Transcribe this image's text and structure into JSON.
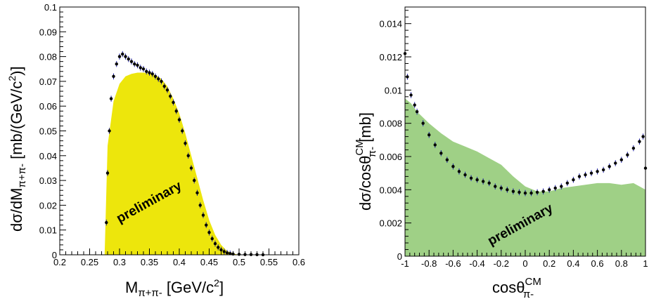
{
  "chart_data": [
    {
      "type": "scatter",
      "annotation": "preliminary",
      "xlabel": {
        "main": "M",
        "sub": "π+π-",
        "unit": "[GeV/c",
        "sup": "2",
        "close": "]"
      },
      "ylabel": {
        "main": "dσ/dM",
        "sub": "π+π-",
        "unit": "[mb/(GeV/c",
        "sup": "2",
        "close": ")]"
      },
      "xlim": [
        0.2,
        0.6
      ],
      "ylim": [
        0,
        0.1
      ],
      "x_ticks": [
        "0.2",
        "0.25",
        "0.3",
        "0.35",
        "0.4",
        "0.45",
        "0.5",
        "0.55",
        "0.6"
      ],
      "y_ticks": [
        "0",
        "0.01",
        "0.02",
        "0.03",
        "0.04",
        "0.05",
        "0.06",
        "0.07",
        "0.08",
        "0.09",
        "0.1"
      ],
      "series": [
        {
          "kind": "filled-area",
          "color": "#ede60c",
          "x": [
            0.275,
            0.28,
            0.29,
            0.3,
            0.31,
            0.32,
            0.33,
            0.34,
            0.35,
            0.36,
            0.37,
            0.38,
            0.39,
            0.4,
            0.41,
            0.42,
            0.43,
            0.44,
            0.45,
            0.46,
            0.47,
            0.48,
            0.49,
            0.5
          ],
          "y": [
            0,
            0.044,
            0.062,
            0.069,
            0.072,
            0.073,
            0.0735,
            0.0735,
            0.0732,
            0.0725,
            0.071,
            0.068,
            0.063,
            0.057,
            0.049,
            0.04,
            0.031,
            0.022,
            0.014,
            0.008,
            0.004,
            0.0015,
            0.0005,
            0
          ]
        },
        {
          "kind": "data-points",
          "color": "#000000",
          "x": [
            0.278,
            0.28,
            0.283,
            0.286,
            0.29,
            0.295,
            0.3,
            0.305,
            0.31,
            0.315,
            0.32,
            0.325,
            0.33,
            0.335,
            0.34,
            0.345,
            0.35,
            0.355,
            0.36,
            0.365,
            0.37,
            0.375,
            0.38,
            0.385,
            0.39,
            0.395,
            0.4,
            0.405,
            0.41,
            0.415,
            0.42,
            0.425,
            0.43,
            0.435,
            0.44,
            0.445,
            0.45,
            0.455,
            0.46,
            0.465,
            0.47,
            0.475,
            0.48,
            0.485,
            0.49,
            0.5,
            0.51,
            0.52,
            0.53,
            0.54
          ],
          "y": [
            0.013,
            0.033,
            0.05,
            0.063,
            0.072,
            0.077,
            0.08,
            0.081,
            0.08,
            0.079,
            0.078,
            0.077,
            0.0765,
            0.0755,
            0.075,
            0.074,
            0.0735,
            0.073,
            0.072,
            0.071,
            0.07,
            0.068,
            0.0665,
            0.064,
            0.0615,
            0.058,
            0.0545,
            0.05,
            0.045,
            0.04,
            0.035,
            0.03,
            0.025,
            0.02,
            0.016,
            0.012,
            0.009,
            0.0065,
            0.0045,
            0.003,
            0.002,
            0.0013,
            0.0008,
            0.0005,
            0.0003,
            0.0002,
            0.0001,
            0.0001,
            5e-05,
            0
          ]
        }
      ]
    },
    {
      "type": "scatter",
      "annotation": "preliminary",
      "xlabel": {
        "main": "cosθ",
        "sub": "π-",
        "sup": "CM"
      },
      "ylabel": {
        "main": "dσ/cosθ",
        "sub": "π-",
        "sup": "CM",
        "unit": "[mb]"
      },
      "xlim": [
        -1,
        1
      ],
      "ylim": [
        0,
        0.015
      ],
      "x_ticks": [
        "-1",
        "-0.8",
        "-0.6",
        "-0.4",
        "-0.2",
        "0",
        "0.2",
        "0.4",
        "0.6",
        "0.8",
        "1"
      ],
      "y_ticks": [
        "0",
        "0.002",
        "0.004",
        "0.006",
        "0.008",
        "0.01",
        "0.012",
        "0.014"
      ],
      "series": [
        {
          "kind": "filled-area",
          "color": "#9fd086",
          "x": [
            -1,
            -0.95,
            -0.9,
            -0.8,
            -0.7,
            -0.6,
            -0.5,
            -0.4,
            -0.3,
            -0.2,
            -0.1,
            0,
            0.1,
            0.2,
            0.3,
            0.4,
            0.5,
            0.6,
            0.7,
            0.8,
            0.9,
            1
          ],
          "y": [
            0.0095,
            0.0092,
            0.0087,
            0.008,
            0.0074,
            0.0069,
            0.0066,
            0.0063,
            0.0059,
            0.0055,
            0.0048,
            0.0042,
            0.0039,
            0.0039,
            0.0041,
            0.0042,
            0.0043,
            0.0044,
            0.0044,
            0.0043,
            0.0044,
            0.004
          ]
        },
        {
          "kind": "data-points",
          "color": "#000000",
          "x": [
            -1,
            -0.98,
            -0.95,
            -0.92,
            -0.9,
            -0.85,
            -0.8,
            -0.75,
            -0.7,
            -0.65,
            -0.6,
            -0.55,
            -0.5,
            -0.45,
            -0.4,
            -0.35,
            -0.3,
            -0.25,
            -0.2,
            -0.15,
            -0.1,
            -0.05,
            0,
            0.05,
            0.1,
            0.15,
            0.2,
            0.25,
            0.3,
            0.35,
            0.4,
            0.45,
            0.5,
            0.55,
            0.6,
            0.65,
            0.7,
            0.75,
            0.8,
            0.85,
            0.9,
            0.95,
            0.98,
            1
          ],
          "y": [
            0.0122,
            0.0108,
            0.0097,
            0.0091,
            0.0087,
            0.008,
            0.0073,
            0.0067,
            0.0062,
            0.0058,
            0.0054,
            0.0051,
            0.0049,
            0.0047,
            0.0046,
            0.0045,
            0.0044,
            0.0042,
            0.0041,
            0.004,
            0.0039,
            0.00385,
            0.0038,
            0.0038,
            0.00385,
            0.0039,
            0.004,
            0.0041,
            0.0042,
            0.0044,
            0.0046,
            0.0048,
            0.0049,
            0.005,
            0.0051,
            0.0052,
            0.0054,
            0.0056,
            0.0058,
            0.0061,
            0.0065,
            0.0069,
            0.0072,
            0.0053
          ]
        }
      ]
    }
  ]
}
